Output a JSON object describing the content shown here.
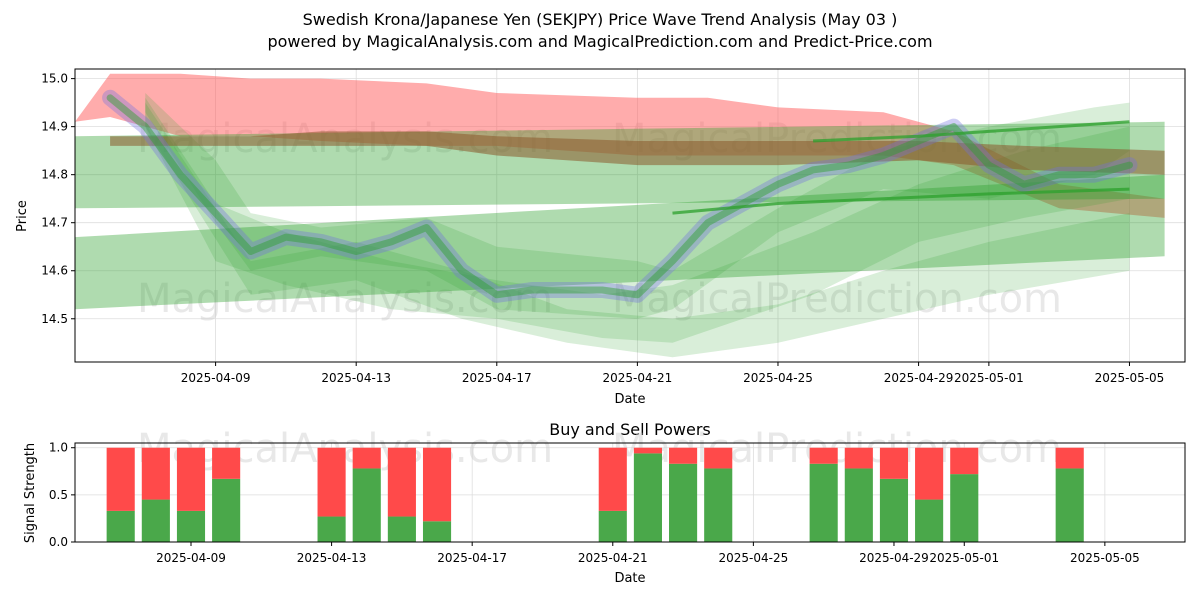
{
  "header": {
    "title_line1": "Swedish Krona/Japanese Yen (SEKJPY) Price Wave Trend Analysis (May 03 )",
    "title_line2": "powered by MagicalAnalysis.com and MagicalPrediction.com and Predict-Price.com"
  },
  "watermarks": [
    "MagicalAnalysis.com",
    "MagicalPrediction.com"
  ],
  "colors": {
    "green": "#2ca02c",
    "red": "#ff5a5a",
    "blue": "#6f6fe0",
    "buy": "#4aa84a",
    "sell": "#ff4a4a"
  },
  "chart_data": [
    {
      "type": "area",
      "title": "",
      "xlabel": "Date",
      "ylabel": "Price",
      "xlim": [
        "2025-04-05",
        "2025-05-06"
      ],
      "ylim": [
        14.41,
        15.02
      ],
      "yticks": [
        14.5,
        14.6,
        14.7,
        14.8,
        14.9,
        15.0
      ],
      "xticks": [
        "2025-04-09",
        "2025-04-13",
        "2025-04-17",
        "2025-04-21",
        "2025-04-25",
        "2025-04-29",
        "2025-05-01",
        "2025-05-05"
      ],
      "grid": true,
      "red_band": {
        "x": [
          "2025-04-05",
          "2025-04-06",
          "2025-04-08",
          "2025-04-10",
          "2025-04-12",
          "2025-04-15",
          "2025-04-17",
          "2025-04-21",
          "2025-04-23",
          "2025-04-25",
          "2025-04-28",
          "2025-04-30",
          "2025-05-03",
          "2025-05-06"
        ],
        "upper": [
          14.91,
          15.01,
          15.01,
          15.0,
          15.0,
          14.99,
          14.97,
          14.96,
          14.96,
          14.94,
          14.93,
          14.89,
          14.78,
          14.75
        ],
        "lower": [
          14.91,
          14.92,
          14.88,
          14.88,
          14.87,
          14.86,
          14.86,
          14.84,
          14.84,
          14.84,
          14.84,
          14.82,
          14.73,
          14.71
        ]
      },
      "brown_band": {
        "x": [
          "2025-04-06",
          "2025-04-10",
          "2025-04-12",
          "2025-04-15",
          "2025-04-17",
          "2025-04-21",
          "2025-04-23",
          "2025-04-25",
          "2025-04-29",
          "2025-05-02",
          "2025-05-06"
        ],
        "upper": [
          14.88,
          14.88,
          14.89,
          14.89,
          14.88,
          14.87,
          14.87,
          14.87,
          14.87,
          14.86,
          14.85
        ],
        "lower": [
          14.86,
          14.86,
          14.86,
          14.86,
          14.84,
          14.82,
          14.82,
          14.82,
          14.83,
          14.81,
          14.8
        ]
      },
      "green_bands": [
        {
          "x": [
            "2025-04-05",
            "2025-05-06"
          ],
          "upper": [
            14.88,
            14.91
          ],
          "lower": [
            14.73,
            14.75
          ]
        },
        {
          "x": [
            "2025-04-05",
            "2025-05-06"
          ],
          "upper": [
            14.67,
            14.8
          ],
          "lower": [
            14.52,
            14.63
          ]
        },
        {
          "x": [
            "2025-04-07",
            "2025-04-09",
            "2025-04-10",
            "2025-04-12",
            "2025-04-15",
            "2025-04-17",
            "2025-04-21",
            "2025-04-22",
            "2025-04-25",
            "2025-04-28",
            "2025-05-01",
            "2025-05-04",
            "2025-05-05"
          ],
          "upper": [
            14.97,
            14.83,
            14.72,
            14.69,
            14.71,
            14.65,
            14.62,
            14.6,
            14.73,
            14.85,
            14.9,
            14.94,
            14.95
          ],
          "lower": [
            14.93,
            14.7,
            14.6,
            14.63,
            14.6,
            14.52,
            14.5,
            14.52,
            14.68,
            14.77,
            14.75,
            14.8,
            14.85
          ]
        },
        {
          "x": [
            "2025-04-07",
            "2025-04-09",
            "2025-04-11",
            "2025-04-14",
            "2025-04-17",
            "2025-04-20",
            "2025-04-22",
            "2025-04-26",
            "2025-04-29",
            "2025-05-02",
            "2025-05-05"
          ],
          "upper": [
            14.96,
            14.74,
            14.68,
            14.62,
            14.58,
            14.55,
            14.57,
            14.68,
            14.78,
            14.85,
            14.9
          ],
          "lower": [
            14.9,
            14.62,
            14.57,
            14.52,
            14.5,
            14.46,
            14.45,
            14.55,
            14.66,
            14.71,
            14.75
          ]
        },
        {
          "x": [
            "2025-04-07",
            "2025-04-10",
            "2025-04-13",
            "2025-04-16",
            "2025-04-19",
            "2025-04-22",
            "2025-04-25",
            "2025-04-28",
            "2025-05-01",
            "2025-05-05"
          ],
          "upper": [
            14.95,
            14.62,
            14.66,
            14.6,
            14.52,
            14.5,
            14.53,
            14.6,
            14.66,
            14.72
          ],
          "lower": [
            14.9,
            14.55,
            14.58,
            14.5,
            14.45,
            14.42,
            14.45,
            14.5,
            14.55,
            14.6
          ]
        }
      ],
      "trend_lines": [
        {
          "x": [
            "2025-04-22",
            "2025-04-25",
            "2025-04-28",
            "2025-05-01",
            "2025-05-05"
          ],
          "y": [
            14.72,
            14.74,
            14.75,
            14.76,
            14.77
          ]
        },
        {
          "x": [
            "2025-04-26",
            "2025-04-29",
            "2025-05-01",
            "2025-05-05"
          ],
          "y": [
            14.87,
            14.88,
            14.89,
            14.91
          ]
        }
      ],
      "price_path": {
        "x": [
          "2025-04-06",
          "2025-04-07",
          "2025-04-08",
          "2025-04-09",
          "2025-04-10",
          "2025-04-11",
          "2025-04-12",
          "2025-04-13",
          "2025-04-14",
          "2025-04-15",
          "2025-04-16",
          "2025-04-17",
          "2025-04-18",
          "2025-04-19",
          "2025-04-20",
          "2025-04-21",
          "2025-04-22",
          "2025-04-23",
          "2025-04-24",
          "2025-04-25",
          "2025-04-26",
          "2025-04-27",
          "2025-04-28",
          "2025-04-29",
          "2025-04-30",
          "2025-05-01",
          "2025-05-02",
          "2025-05-03",
          "2025-05-04",
          "2025-05-05"
        ],
        "y": [
          14.96,
          14.9,
          14.8,
          14.72,
          14.64,
          14.67,
          14.66,
          14.64,
          14.66,
          14.69,
          14.6,
          14.55,
          14.56,
          14.56,
          14.56,
          14.55,
          14.62,
          14.7,
          14.74,
          14.78,
          14.81,
          14.82,
          14.84,
          14.87,
          14.9,
          14.82,
          14.78,
          14.8,
          14.8,
          14.82
        ]
      }
    },
    {
      "type": "bar",
      "title": "Buy and Sell Powers",
      "xlabel": "Date",
      "ylabel": "Signal Strength",
      "ylim": [
        0,
        1.05
      ],
      "yticks": [
        0.0,
        0.5,
        1.0
      ],
      "xticks": [
        "2025-04-09",
        "2025-04-13",
        "2025-04-17",
        "2025-04-21",
        "2025-04-25",
        "2025-04-29",
        "2025-05-01",
        "2025-05-05"
      ],
      "grid": true,
      "categories": [
        "2025-04-07",
        "2025-04-08",
        "2025-04-09",
        "2025-04-10",
        "2025-04-13",
        "2025-04-14",
        "2025-04-15",
        "2025-04-16",
        "2025-04-21",
        "2025-04-22",
        "2025-04-23",
        "2025-04-24",
        "2025-04-27",
        "2025-04-28",
        "2025-04-29",
        "2025-04-30",
        "2025-05-01",
        "2025-05-04"
      ],
      "series": [
        {
          "name": "",
          "values": [
            0.33,
            0.45,
            0.33,
            0.67,
            0.27,
            0.78,
            0.27,
            0.22,
            0.33,
            0.94,
            0.83,
            0.78,
            0.83,
            0.78,
            0.67,
            0.45,
            0.72,
            0.78
          ]
        },
        {
          "name": "",
          "values": [
            0.67,
            0.55,
            0.67,
            0.33,
            0.73,
            0.22,
            0.73,
            0.78,
            0.67,
            0.06,
            0.17,
            0.22,
            0.17,
            0.22,
            0.33,
            0.55,
            0.28,
            0.22
          ]
        }
      ]
    }
  ]
}
